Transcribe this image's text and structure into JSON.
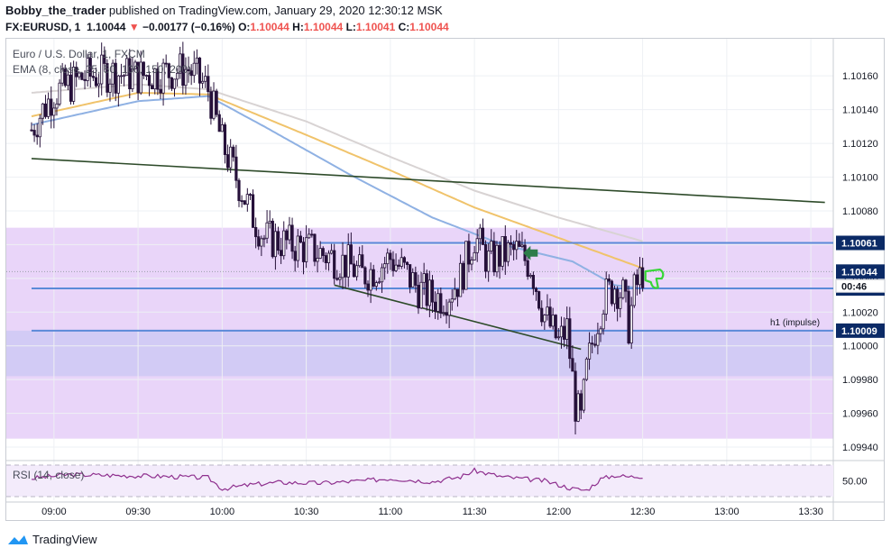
{
  "header": {
    "author": "Bobby_the_trader",
    "published": "published on TradingView.com, January 29, 2020 12:30:12 MSK",
    "symbol_line": "FX:EURUSD, 1",
    "last": "1.10044",
    "change": "−0.00177 (−0.16%)",
    "o_label": "O:",
    "o_val": "1.10044",
    "h_label": "H:",
    "h_val": "1.10044",
    "l_label": "L:",
    "l_val": "1.10041",
    "c_label": "C:",
    "c_val": "1.10044"
  },
  "legend": {
    "name": "Euro / U.S. Dollar, 1, FXCM",
    "ema": "EMA (8, close, 25, 50, 100, 150, 200)",
    "rsi": "RSI (14, close)"
  },
  "footer": {
    "brand": "TradingView"
  },
  "colors": {
    "candle": "#26113a",
    "zone_light": "#e9d5f9",
    "zone_dark": "#d2cbf5",
    "hline": "#5b8ad8",
    "trend": "#2e4b2a",
    "ema_blue": "#8fb1e3",
    "ema_orange": "#f0c36b",
    "ema_gray": "#d8d3d3",
    "rsi": "#8e2f8e",
    "arrow": "#2e7d4a",
    "thumb": "#36d636",
    "price_tag": "#0b2a66"
  },
  "chart_data": {
    "type": "candlestick",
    "symbol": "EURUSD",
    "interval": "1m",
    "ylim": [
      1.0993,
      1.10175
    ],
    "y_ticks": [
      "1.10160",
      "1.10140",
      "1.10120",
      "1.10100",
      "1.10080",
      "1.10060",
      "1.10040",
      "1.10020",
      "1.10000",
      "1.09980",
      "1.09960",
      "1.09940"
    ],
    "x_range": [
      "08:52",
      "13:35"
    ],
    "x_ticks": [
      "09:00",
      "09:30",
      "10:00",
      "10:30",
      "11:00",
      "11:30",
      "12:00",
      "12:30",
      "13:00",
      "13:30"
    ],
    "close_anchors": [
      [
        "08:52",
        1.10128
      ],
      [
        "08:55",
        1.10137
      ],
      [
        "09:00",
        1.1015
      ],
      [
        "09:05",
        1.10154
      ],
      [
        "09:10",
        1.10159
      ],
      [
        "09:20",
        1.10162
      ],
      [
        "09:30",
        1.1016
      ],
      [
        "09:40",
        1.10162
      ],
      [
        "09:48",
        1.10164
      ],
      [
        "09:55",
        1.10152
      ],
      [
        "10:00",
        1.1012
      ],
      [
        "10:05",
        1.101
      ],
      [
        "10:10",
        1.1008
      ],
      [
        "10:15",
        1.10064
      ],
      [
        "10:20",
        1.10062
      ],
      [
        "10:25",
        1.1006
      ],
      [
        "10:30",
        1.10058
      ],
      [
        "10:35",
        1.10055
      ],
      [
        "10:40",
        1.10052
      ],
      [
        "10:45",
        1.10048
      ],
      [
        "10:50",
        1.10042
      ],
      [
        "10:55",
        1.10046
      ],
      [
        "11:00",
        1.10052
      ],
      [
        "11:05",
        1.10044
      ],
      [
        "11:10",
        1.10034
      ],
      [
        "11:15",
        1.10028
      ],
      [
        "11:20",
        1.1003
      ],
      [
        "11:25",
        1.1004
      ],
      [
        "11:30",
        1.10065
      ],
      [
        "11:35",
        1.1005
      ],
      [
        "11:40",
        1.10054
      ],
      [
        "11:45",
        1.10056
      ],
      [
        "11:50",
        1.10048
      ],
      [
        "11:55",
        1.10018
      ],
      [
        "12:00",
        1.10002
      ],
      [
        "12:03",
        1.1001
      ],
      [
        "12:06",
        1.09965
      ],
      [
        "12:08",
        1.09955
      ],
      [
        "12:10",
        1.09985
      ],
      [
        "12:13",
        1.1001
      ],
      [
        "12:16",
        1.10028
      ],
      [
        "12:20",
        1.10036
      ],
      [
        "12:23",
        1.1003
      ],
      [
        "12:25",
        1.10012
      ],
      [
        "12:27",
        1.10032
      ],
      [
        "12:30",
        1.10044
      ]
    ],
    "ema_blue_anchors": [
      [
        "08:52",
        1.10131
      ],
      [
        "09:30",
        1.10145
      ],
      [
        "09:55",
        1.10148
      ],
      [
        "10:15",
        1.1013
      ],
      [
        "10:45",
        1.10102
      ],
      [
        "11:15",
        1.10076
      ],
      [
        "11:40",
        1.1006
      ],
      [
        "12:05",
        1.1005
      ],
      [
        "12:20",
        1.10036
      ],
      [
        "12:30",
        1.10034
      ]
    ],
    "ema_orange_anchors": [
      [
        "08:52",
        1.10136
      ],
      [
        "09:30",
        1.1015
      ],
      [
        "09:55",
        1.10149
      ],
      [
        "10:30",
        1.10125
      ],
      [
        "11:00",
        1.10104
      ],
      [
        "11:30",
        1.10082
      ],
      [
        "12:00",
        1.10064
      ],
      [
        "12:30",
        1.10046
      ]
    ],
    "ema_gray_anchors": [
      [
        "08:52",
        1.1015
      ],
      [
        "09:30",
        1.10155
      ],
      [
        "09:55",
        1.10152
      ],
      [
        "10:30",
        1.10133
      ],
      [
        "11:00",
        1.10112
      ],
      [
        "11:30",
        1.10092
      ],
      [
        "12:00",
        1.10076
      ],
      [
        "12:30",
        1.10062
      ]
    ],
    "zones": [
      {
        "from": 1.1007,
        "to": 1.09945,
        "shade": "light"
      },
      {
        "from": 1.10009,
        "to": 1.09982,
        "shade": "dark"
      }
    ],
    "hlines": [
      {
        "value": 1.10061,
        "label": "1.10061",
        "from": "10:35",
        "to": "13:35"
      },
      {
        "value": 1.10034,
        "label": "1.10034",
        "from": "08:52",
        "to": "13:35"
      },
      {
        "value": 1.10009,
        "label": "1.10009",
        "from": "08:52",
        "to": "13:35",
        "note": "h1 (impulse)"
      }
    ],
    "current": {
      "value": 1.10044,
      "label": "1.10044",
      "countdown": "00:46"
    },
    "trendlines": [
      {
        "from": [
          "08:52",
          1.10111
        ],
        "to": [
          "13:35",
          1.10085
        ]
      },
      {
        "from": [
          "10:40",
          1.10036
        ],
        "to": [
          "12:08",
          1.09998
        ]
      }
    ],
    "rsi": {
      "levels": [
        "50.00"
      ],
      "anchors": [
        [
          "08:52",
          53
        ],
        [
          "09:05",
          58
        ],
        [
          "09:20",
          57
        ],
        [
          "09:35",
          56
        ],
        [
          "09:55",
          54
        ],
        [
          "10:00",
          40
        ],
        [
          "10:10",
          45
        ],
        [
          "10:20",
          48
        ],
        [
          "10:35",
          47
        ],
        [
          "10:50",
          50
        ],
        [
          "11:00",
          53
        ],
        [
          "11:15",
          49
        ],
        [
          "11:25",
          55
        ],
        [
          "11:30",
          63
        ],
        [
          "11:40",
          55
        ],
        [
          "11:55",
          50
        ],
        [
          "12:05",
          40
        ],
        [
          "12:10",
          38
        ],
        [
          "12:15",
          52
        ],
        [
          "12:20",
          57
        ],
        [
          "12:25",
          55
        ],
        [
          "12:30",
          56
        ]
      ]
    }
  }
}
